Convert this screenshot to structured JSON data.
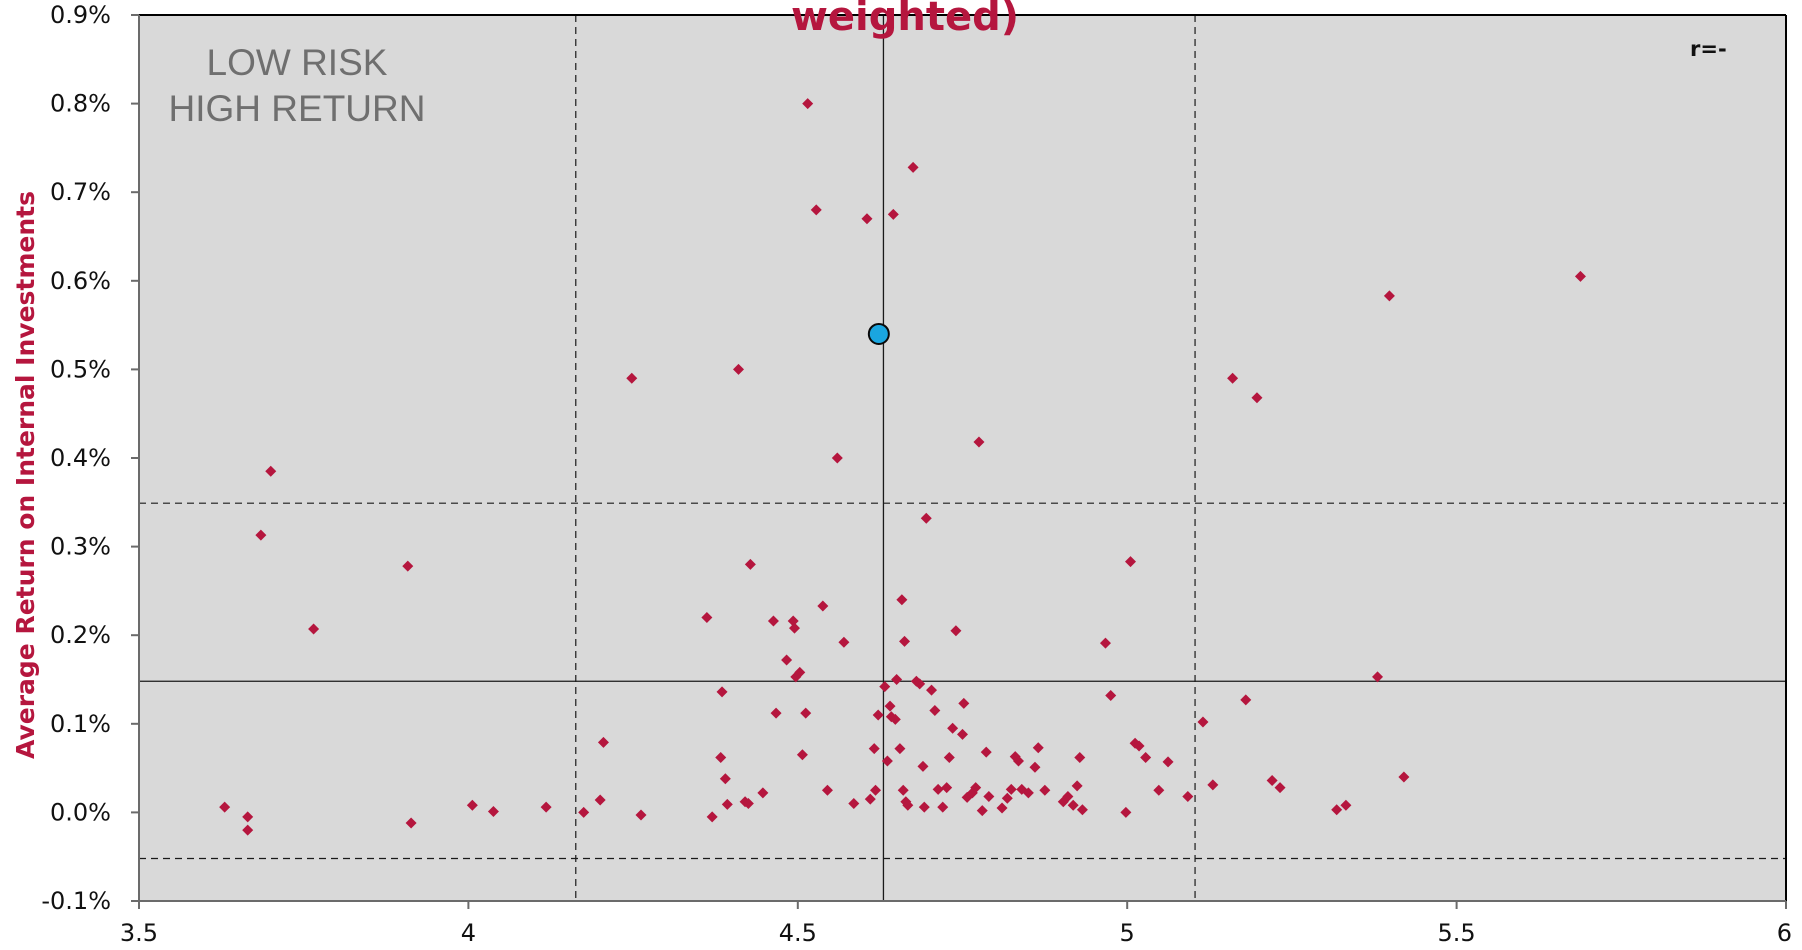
{
  "chart_data": {
    "type": "scatter",
    "title": "weighted)",
    "xlabel": "",
    "ylabel": "Average Return on Internal Investments",
    "annotations": {
      "quadrant_label_line1": "LOW RISK",
      "quadrant_label_line2": "HIGH RETURN",
      "r_label": "r=-"
    },
    "xlim": [
      3.5,
      6
    ],
    "ylim": [
      -0.1,
      0.9
    ],
    "x_ticks": [
      3.5,
      4,
      4.5,
      5,
      5.5,
      6
    ],
    "x_tick_labels": [
      "3.5",
      "4",
      "4.5",
      "5",
      "5.5",
      "6"
    ],
    "y_ticks": [
      -0.1,
      0,
      0.1,
      0.2,
      0.3,
      0.4,
      0.5,
      0.6,
      0.7,
      0.8,
      0.9
    ],
    "y_tick_labels": [
      "-0.1%",
      "0.0%",
      "0.1%",
      "0.2%",
      "0.3%",
      "0.4%",
      "0.5%",
      "0.6%",
      "0.7%",
      "0.8%",
      "0.9%"
    ],
    "grid": false,
    "reference_lines": {
      "solid_vertical_x": 4.63,
      "solid_horizontal_y": 0.148,
      "dashed_vertical_x": [
        4.163,
        5.103
      ],
      "dashed_horizontal_y": [
        0.349,
        -0.052
      ]
    },
    "colors": {
      "plot_background": "#d9d9d9",
      "point": "#b5163e",
      "highlight_fill": "#1aa6e0",
      "highlight_stroke": "#0a0a0a"
    },
    "highlight": {
      "x": 4.623,
      "y": 0.54
    },
    "series": [
      {
        "values": [
          [
            3.63,
            0.006
          ],
          [
            3.665,
            -0.005
          ],
          [
            3.665,
            -0.02
          ],
          [
            3.685,
            0.313
          ],
          [
            3.7,
            0.385
          ],
          [
            3.765,
            0.207
          ],
          [
            3.908,
            0.278
          ],
          [
            3.913,
            -0.012
          ],
          [
            4.006,
            0.008
          ],
          [
            4.038,
            0.001
          ],
          [
            4.118,
            0.006
          ],
          [
            4.175,
            0.0
          ],
          [
            4.2,
            0.014
          ],
          [
            4.205,
            0.079
          ],
          [
            4.248,
            0.49
          ],
          [
            4.262,
            -0.003
          ],
          [
            4.362,
            0.22
          ],
          [
            4.37,
            -0.005
          ],
          [
            4.383,
            0.062
          ],
          [
            4.385,
            0.136
          ],
          [
            4.39,
            0.038
          ],
          [
            4.393,
            0.009
          ],
          [
            4.41,
            0.5
          ],
          [
            4.42,
            0.012
          ],
          [
            4.425,
            0.01
          ],
          [
            4.428,
            0.28
          ],
          [
            4.447,
            0.022
          ],
          [
            4.463,
            0.216
          ],
          [
            4.467,
            0.112
          ],
          [
            4.483,
            0.172
          ],
          [
            4.493,
            0.216
          ],
          [
            4.495,
            0.208
          ],
          [
            4.497,
            0.153
          ],
          [
            4.503,
            0.158
          ],
          [
            4.507,
            0.065
          ],
          [
            4.512,
            0.112
          ],
          [
            4.515,
            0.8
          ],
          [
            4.528,
            0.68
          ],
          [
            4.538,
            0.233
          ],
          [
            4.545,
            0.025
          ],
          [
            4.56,
            0.4
          ],
          [
            4.57,
            0.192
          ],
          [
            4.585,
            0.01
          ],
          [
            4.605,
            0.67
          ],
          [
            4.61,
            0.015
          ],
          [
            4.616,
            0.072
          ],
          [
            4.618,
            0.025
          ],
          [
            4.622,
            0.11
          ],
          [
            4.632,
            0.142
          ],
          [
            4.636,
            0.058
          ],
          [
            4.64,
            0.12
          ],
          [
            4.642,
            0.108
          ],
          [
            4.645,
            0.675
          ],
          [
            4.648,
            0.105
          ],
          [
            4.65,
            0.15
          ],
          [
            4.655,
            0.072
          ],
          [
            4.658,
            0.24
          ],
          [
            4.66,
            0.025
          ],
          [
            4.662,
            0.193
          ],
          [
            4.664,
            0.012
          ],
          [
            4.667,
            0.008
          ],
          [
            4.675,
            0.728
          ],
          [
            4.68,
            0.148
          ],
          [
            4.685,
            0.145
          ],
          [
            4.69,
            0.052
          ],
          [
            4.692,
            0.006
          ],
          [
            4.695,
            0.332
          ],
          [
            4.703,
            0.138
          ],
          [
            4.708,
            0.115
          ],
          [
            4.713,
            0.026
          ],
          [
            4.72,
            0.006
          ],
          [
            4.726,
            0.028
          ],
          [
            4.73,
            0.062
          ],
          [
            4.735,
            0.095
          ],
          [
            4.74,
            0.205
          ],
          [
            4.75,
            0.088
          ],
          [
            4.752,
            0.123
          ],
          [
            4.757,
            0.017
          ],
          [
            4.765,
            0.022
          ],
          [
            4.77,
            0.028
          ],
          [
            4.775,
            0.418
          ],
          [
            4.78,
            0.002
          ],
          [
            4.786,
            0.068
          ],
          [
            4.79,
            0.018
          ],
          [
            4.81,
            0.005
          ],
          [
            4.818,
            0.016
          ],
          [
            4.824,
            0.026
          ],
          [
            4.83,
            0.063
          ],
          [
            4.835,
            0.058
          ],
          [
            4.84,
            0.026
          ],
          [
            4.85,
            0.022
          ],
          [
            4.86,
            0.051
          ],
          [
            4.865,
            0.073
          ],
          [
            4.875,
            0.025
          ],
          [
            4.903,
            0.012
          ],
          [
            4.91,
            0.018
          ],
          [
            4.918,
            0.008
          ],
          [
            4.924,
            0.03
          ],
          [
            4.928,
            0.062
          ],
          [
            4.932,
            0.003
          ],
          [
            4.967,
            0.191
          ],
          [
            4.975,
            0.132
          ],
          [
            4.998,
            0.0
          ],
          [
            5.005,
            0.283
          ],
          [
            5.012,
            0.078
          ],
          [
            5.018,
            0.075
          ],
          [
            5.028,
            0.062
          ],
          [
            5.048,
            0.025
          ],
          [
            5.062,
            0.057
          ],
          [
            5.092,
            0.018
          ],
          [
            5.115,
            0.102
          ],
          [
            5.13,
            0.031
          ],
          [
            5.16,
            0.49
          ],
          [
            5.18,
            0.127
          ],
          [
            5.197,
            0.468
          ],
          [
            5.22,
            0.036
          ],
          [
            5.232,
            0.028
          ],
          [
            5.318,
            0.003
          ],
          [
            5.332,
            0.008
          ],
          [
            5.38,
            0.153
          ],
          [
            5.398,
            0.583
          ],
          [
            5.42,
            0.04
          ],
          [
            5.688,
            0.605
          ]
        ]
      }
    ]
  }
}
